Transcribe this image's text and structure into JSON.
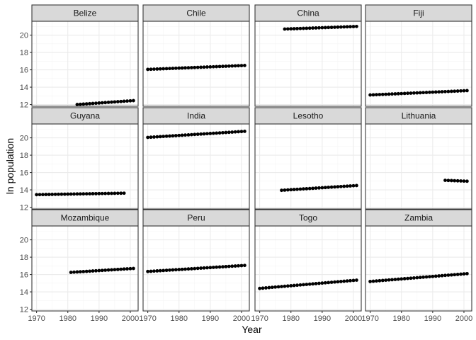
{
  "chart_data": {
    "type": "scatter",
    "xlabel": "Year",
    "ylabel": "ln population",
    "xlim": [
      1968.5,
      2002.5
    ],
    "ylim": [
      11.8,
      21.6
    ],
    "xticks": [
      1970,
      1980,
      1990,
      2000
    ],
    "xtick_labels": [
      "1970",
      "1980",
      "1990",
      "2000"
    ],
    "yticks": [
      12,
      14,
      16,
      18,
      20
    ],
    "ytick_labels": [
      "12",
      "14",
      "16",
      "18",
      "20"
    ],
    "grid": true,
    "layout": {
      "rows": 3,
      "cols": 4
    },
    "colors": {
      "point": "#000000",
      "strip_fill": "#d9d9d9",
      "panel_border": "#333333",
      "grid_major": "#ebebeb",
      "grid_minor": "#f4f4f4"
    },
    "panels": [
      {
        "name": "Belize",
        "x_start": 1983,
        "x_end": 2001,
        "y_start": 12.0,
        "y_end": 12.45
      },
      {
        "name": "Chile",
        "x_start": 1970,
        "x_end": 2001,
        "y_start": 16.05,
        "y_end": 16.5
      },
      {
        "name": "China",
        "x_start": 1978,
        "x_end": 2001,
        "y_start": 20.7,
        "y_end": 21.0
      },
      {
        "name": "Fiji",
        "x_start": 1970,
        "x_end": 2001,
        "y_start": 13.1,
        "y_end": 13.6
      },
      {
        "name": "Guyana",
        "x_start": 1970,
        "x_end": 1998,
        "y_start": 13.45,
        "y_end": 13.62
      },
      {
        "name": "India",
        "x_start": 1970,
        "x_end": 2001,
        "y_start": 20.05,
        "y_end": 20.75
      },
      {
        "name": "Lesotho",
        "x_start": 1977,
        "x_end": 2001,
        "y_start": 13.95,
        "y_end": 14.5
      },
      {
        "name": "Lithuania",
        "x_start": 1994,
        "x_end": 2001,
        "y_start": 15.1,
        "y_end": 15.0
      },
      {
        "name": "Mozambique",
        "x_start": 1981,
        "x_end": 2001,
        "y_start": 16.25,
        "y_end": 16.7
      },
      {
        "name": "Peru",
        "x_start": 1970,
        "x_end": 2001,
        "y_start": 16.35,
        "y_end": 17.05
      },
      {
        "name": "Togo",
        "x_start": 1970,
        "x_end": 2001,
        "y_start": 14.4,
        "y_end": 15.35
      },
      {
        "name": "Zambia",
        "x_start": 1970,
        "x_end": 2001,
        "y_start": 15.2,
        "y_end": 16.1
      }
    ]
  }
}
